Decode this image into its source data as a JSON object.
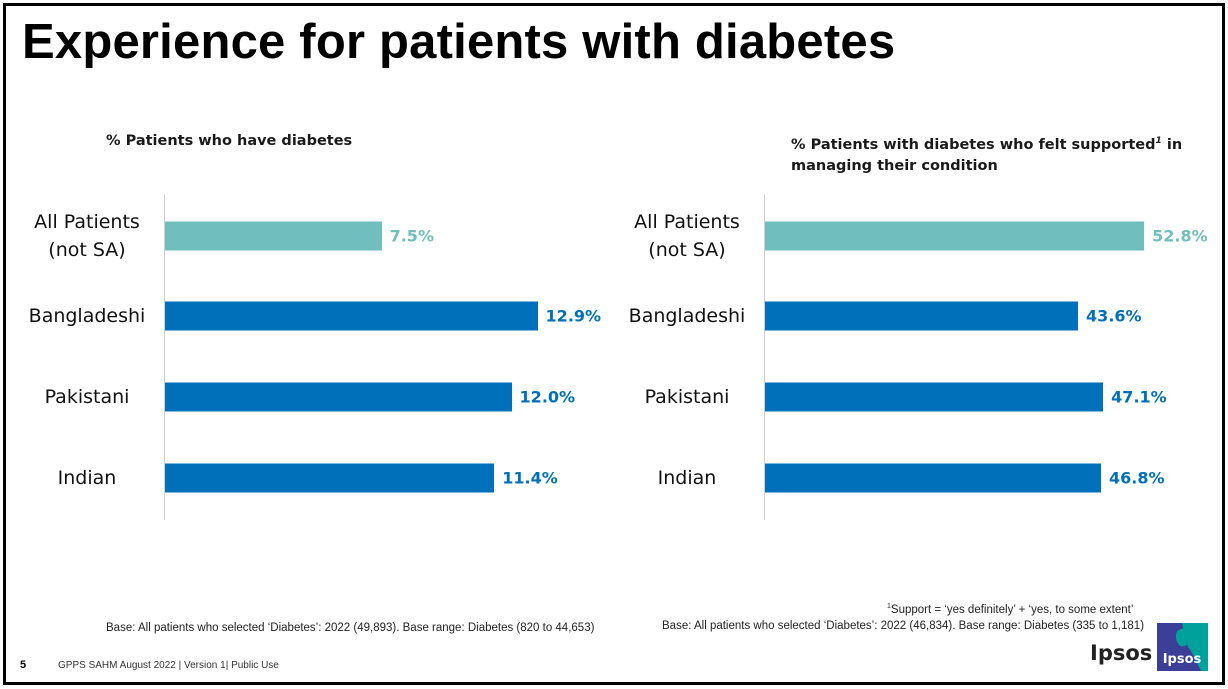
{
  "page": {
    "title": "Experience for patients with diabetes",
    "slide_number": "5",
    "footer": "GPPS  SAHM  August 2022 | Version 1| Public Use",
    "brand": "Ipsos",
    "logo_text": "Ipsos"
  },
  "colors": {
    "all_patients": "#70BFBE",
    "ethnic_group": "#0070BA",
    "logo_blue": "#3C3F97",
    "logo_teal": "#00A19A"
  },
  "notes": {
    "left_base": "Base: All patients who selected ‘Diabetes’: 2022  (49,893).  Base range: Diabetes  (820 to 44,653)",
    "footnote_marker": "1",
    "footnote": "Support = ‘yes definitely’ +  ‘yes, to some extent’",
    "right_base": "Base: All patients who selected ‘Diabetes’: 2022  (46,834).  Base range: Diabetes  (335 to 1,181)"
  },
  "chart_data": [
    {
      "type": "bar",
      "orientation": "horizontal",
      "title": "% Patients who have diabetes",
      "title_superscript": "",
      "title_suffix": "",
      "categories": [
        "All Patients\n(not SA)",
        "Bangladeshi",
        "Pakistani",
        "Indian"
      ],
      "values": [
        7.5,
        12.9,
        12.0,
        11.4
      ],
      "value_labels": [
        "7.5%",
        "12.9%",
        "12.0%",
        "11.4%"
      ],
      "xlabel": "",
      "ylabel": "",
      "unit": "%",
      "grid": false,
      "legend": "none"
    },
    {
      "type": "bar",
      "orientation": "horizontal",
      "title": "% Patients with diabetes who felt supported",
      "title_superscript": "1",
      "title_suffix": " in managing their condition",
      "categories": [
        "All Patients\n(not SA)",
        "Bangladeshi",
        "Pakistani",
        "Indian"
      ],
      "values": [
        52.8,
        43.6,
        47.1,
        46.8
      ],
      "value_labels": [
        "52.8%",
        "43.6%",
        "47.1%",
        "46.8%"
      ],
      "xlabel": "",
      "ylabel": "",
      "unit": "%",
      "grid": false,
      "legend": "none"
    }
  ]
}
